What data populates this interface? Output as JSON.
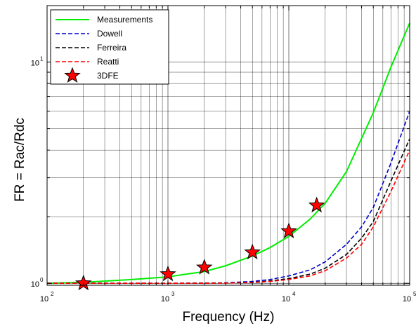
{
  "chart_data": {
    "type": "line",
    "xlabel": "Frequency (Hz)",
    "ylabel": "FR = Rac/Rdc",
    "xscale": "log",
    "yscale": "log",
    "xlim": [
      100,
      100000
    ],
    "ylim": [
      0.98,
      18
    ],
    "xtick_labels": [
      {
        "base": "10",
        "exp": "2",
        "value": 100
      },
      {
        "base": "10",
        "exp": "3",
        "value": 1000
      },
      {
        "base": "10",
        "exp": "4",
        "value": 10000
      },
      {
        "base": "10",
        "exp": "5",
        "value": 100000
      }
    ],
    "ytick_labels": [
      {
        "base": "10",
        "exp": "0",
        "value": 1
      },
      {
        "base": "10",
        "exp": "1",
        "value": 10
      }
    ],
    "grid": true,
    "legend_position": "top-left",
    "series": [
      {
        "name": "Measurements",
        "color": "#00ee00",
        "style": "solid",
        "x": [
          100,
          200,
          500,
          1000,
          2000,
          3000,
          5000,
          7000,
          10000,
          15000,
          20000,
          30000,
          50000,
          70000,
          100000
        ],
        "y": [
          1.0,
          1.01,
          1.04,
          1.07,
          1.13,
          1.2,
          1.33,
          1.45,
          1.63,
          1.95,
          2.3,
          3.2,
          5.9,
          9.5,
          15.0
        ]
      },
      {
        "name": "Dowell",
        "color": "#0000cc",
        "style": "dashed",
        "x": [
          100,
          1000,
          3000,
          5000,
          7000,
          10000,
          15000,
          20000,
          30000,
          40000,
          50000,
          70000,
          100000
        ],
        "y": [
          1.0,
          1.0,
          1.005,
          1.02,
          1.04,
          1.08,
          1.15,
          1.25,
          1.5,
          1.8,
          2.2,
          3.5,
          6.0
        ]
      },
      {
        "name": "Ferreira",
        "color": "#000000",
        "style": "dashed",
        "x": [
          100,
          1000,
          3000,
          5000,
          7000,
          10000,
          15000,
          20000,
          30000,
          40000,
          50000,
          70000,
          100000
        ],
        "y": [
          1.0,
          1.0,
          1.003,
          1.01,
          1.025,
          1.05,
          1.1,
          1.17,
          1.35,
          1.6,
          1.9,
          2.9,
          4.5
        ]
      },
      {
        "name": "Reatti",
        "color": "#ff0000",
        "style": "dashed",
        "x": [
          100,
          1000,
          3000,
          5000,
          7000,
          10000,
          15000,
          20000,
          30000,
          40000,
          50000,
          70000,
          100000
        ],
        "y": [
          1.0,
          1.0,
          1.002,
          1.008,
          1.02,
          1.04,
          1.08,
          1.14,
          1.3,
          1.5,
          1.8,
          2.6,
          4.0
        ]
      },
      {
        "name": "3DFE",
        "color": "#ff0000",
        "style": "marker-star",
        "x": [
          200,
          1000,
          2000,
          5000,
          10000,
          17000
        ],
        "y": [
          1.0,
          1.1,
          1.18,
          1.38,
          1.72,
          2.25
        ]
      }
    ]
  }
}
